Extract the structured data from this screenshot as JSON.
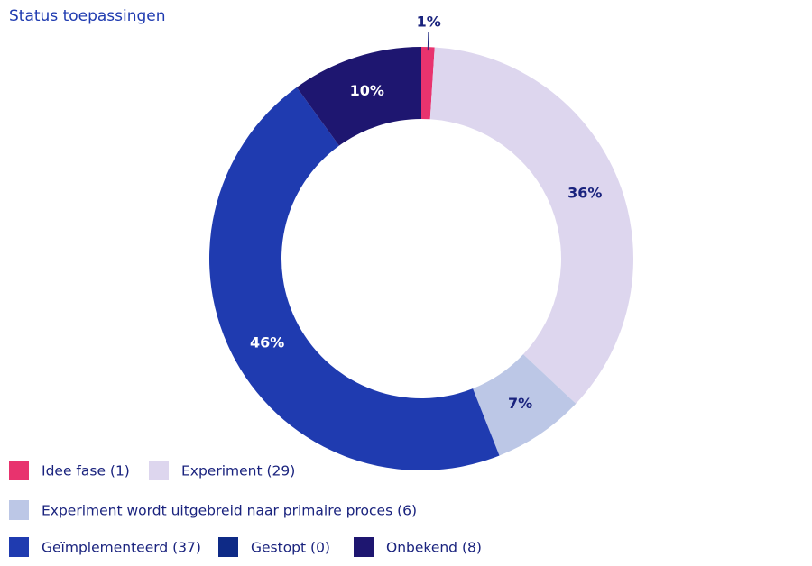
{
  "chart_data": {
    "type": "pie",
    "title": "Status toepassingen",
    "categories": [
      "Idee fase (1)",
      "Experiment (29)",
      "Experiment wordt uitgebreid naar primaire proces (6)",
      "Geïmplementeerd (37)",
      "Gestopt (0)",
      "Onbekend (8)"
    ],
    "values": [
      1,
      36,
      7,
      46,
      0,
      10
    ],
    "value_labels": [
      "1%",
      "36%",
      "7%",
      "46%",
      null,
      "10%"
    ],
    "colors": [
      "#e8336e",
      "#ddd6ee",
      "#bcc7e6",
      "#1f3bb0",
      "#0e2a86",
      "#1e1670"
    ],
    "donut": true
  }
}
